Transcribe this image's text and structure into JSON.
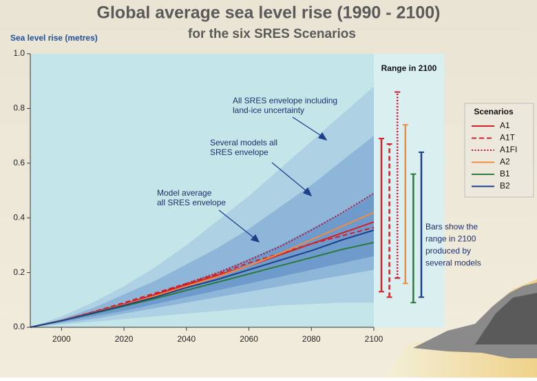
{
  "chart_data": {
    "type": "line",
    "title": "Global average sea level rise (1990 - 2100)",
    "subtitle": "for the six SRES Scenarios",
    "y_label": "Sea level rise (metres)",
    "xlim": [
      1990,
      2100
    ],
    "xticks": [
      2000,
      2020,
      2040,
      2060,
      2080,
      2100
    ],
    "ylim": [
      0,
      1.0
    ],
    "yticks": [
      {
        "value": 0,
        "label": "0.0"
      },
      0.2,
      0.4,
      0.6,
      0.8,
      {
        "value": 1.0,
        "label": "1.0"
      }
    ],
    "x": [
      1990,
      2000,
      2010,
      2020,
      2030,
      2040,
      2050,
      2060,
      2070,
      2080,
      2090,
      2100
    ],
    "envelopes": [
      {
        "label": [
          "All SRES envelope including",
          "land-ice uncertainty"
        ],
        "color": "#aed2e3",
        "upper": [
          0,
          0.04,
          0.09,
          0.15,
          0.22,
          0.3,
          0.39,
          0.48,
          0.58,
          0.68,
          0.78,
          0.88
        ],
        "lower": [
          0,
          0.01,
          0.02,
          0.03,
          0.04,
          0.05,
          0.06,
          0.07,
          0.08,
          0.085,
          0.09,
          0.09
        ]
      },
      {
        "label": [
          "Several models all",
          "SRES envelope"
        ],
        "color": "#8db6d8",
        "upper": [
          0,
          0.03,
          0.07,
          0.12,
          0.17,
          0.23,
          0.29,
          0.36,
          0.44,
          0.52,
          0.61,
          0.7
        ],
        "lower": [
          0,
          0.015,
          0.03,
          0.05,
          0.07,
          0.09,
          0.11,
          0.13,
          0.15,
          0.17,
          0.19,
          0.21
        ]
      },
      {
        "label": [
          "Model average",
          "all SRES envelope"
        ],
        "color": "#6e9bcb",
        "upper": [
          0,
          0.025,
          0.05,
          0.085,
          0.12,
          0.16,
          0.2,
          0.25,
          0.3,
          0.36,
          0.42,
          0.49
        ],
        "lower": [
          0,
          0.02,
          0.04,
          0.06,
          0.085,
          0.11,
          0.135,
          0.16,
          0.185,
          0.21,
          0.235,
          0.26
        ]
      }
    ],
    "legend_title": "Scenarios",
    "series": [
      {
        "name": "A1",
        "color": "#d62027",
        "dash": "solid",
        "values": [
          0,
          0.025,
          0.055,
          0.085,
          0.12,
          0.155,
          0.19,
          0.225,
          0.265,
          0.305,
          0.345,
          0.385
        ]
      },
      {
        "name": "A1T",
        "color": "#d62027",
        "dash": "dashed",
        "values": [
          0,
          0.025,
          0.056,
          0.09,
          0.125,
          0.16,
          0.195,
          0.235,
          0.27,
          0.305,
          0.335,
          0.365
        ]
      },
      {
        "name": "A1FI",
        "color": "#c8102e",
        "dash": "dotted",
        "values": [
          0,
          0.025,
          0.055,
          0.085,
          0.12,
          0.16,
          0.2,
          0.245,
          0.295,
          0.355,
          0.42,
          0.49
        ]
      },
      {
        "name": "A2",
        "color": "#f28c3c",
        "dash": "solid",
        "values": [
          0,
          0.025,
          0.053,
          0.082,
          0.115,
          0.15,
          0.185,
          0.225,
          0.27,
          0.32,
          0.37,
          0.42
        ]
      },
      {
        "name": "B1",
        "color": "#2a7a3a",
        "dash": "solid",
        "values": [
          0,
          0.024,
          0.05,
          0.077,
          0.105,
          0.135,
          0.165,
          0.195,
          0.225,
          0.255,
          0.285,
          0.31
        ]
      },
      {
        "name": "B2",
        "color": "#1d3f8a",
        "dash": "solid",
        "values": [
          0,
          0.024,
          0.052,
          0.08,
          0.11,
          0.145,
          0.175,
          0.21,
          0.245,
          0.28,
          0.32,
          0.355
        ]
      }
    ],
    "range_title": "Range in 2100",
    "range_bars": {
      "low": [
        0.13,
        0.11,
        0.18,
        0.16,
        0.09,
        0.11
      ],
      "high": [
        0.69,
        0.67,
        0.86,
        0.74,
        0.56,
        0.64
      ]
    },
    "range_note": [
      "Bars show  the",
      "range in 2100",
      "produced by",
      "several models"
    ]
  }
}
